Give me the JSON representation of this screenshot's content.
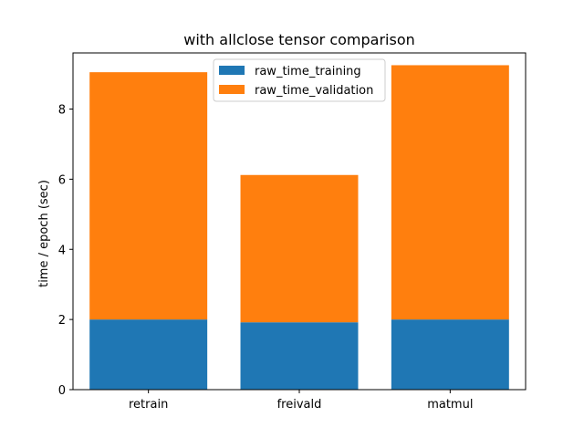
{
  "chart_data": {
    "type": "bar",
    "stacked": true,
    "title": "with allclose tensor comparison",
    "xlabel": "",
    "ylabel": "time / epoch (sec)",
    "categories": [
      "retrain",
      "freivald",
      "matmul"
    ],
    "series": [
      {
        "name": "raw_time_training",
        "values": [
          2.0,
          1.92,
          2.0
        ],
        "color": "#1f77b4"
      },
      {
        "name": "raw_time_validation",
        "values": [
          7.05,
          4.2,
          7.25
        ],
        "color": "#ff7f0e"
      }
    ],
    "ylim": [
      0,
      9.6
    ],
    "yticks": [
      0,
      2,
      4,
      6,
      8
    ],
    "grid": false,
    "legend_position": "top-center"
  }
}
